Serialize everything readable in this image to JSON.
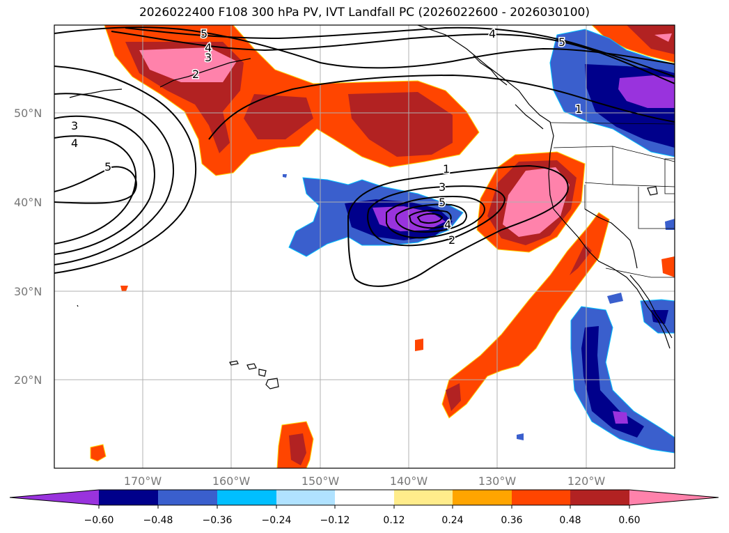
{
  "title": "2026022400 F108 300 hPa PV, IVT Landfall PC (2026022600 - 2026030100)",
  "map": {
    "lat_labels": [
      "50°N",
      "40°N",
      "30°N",
      "20°N"
    ],
    "lon_labels": [
      "170°W",
      "160°W",
      "150°W",
      "140°W",
      "130°W",
      "120°W"
    ],
    "contour_labels": [
      "5",
      "4",
      "3",
      "2",
      "4",
      "5",
      "1",
      "3",
      "4",
      "5",
      "1",
      "3",
      "5",
      "4",
      "2"
    ]
  },
  "colorbar": {
    "colors": [
      "#9933dd",
      "#00008b",
      "#3a5fcd",
      "#00bfff",
      "#b0e2ff",
      "#ffffff",
      "#ffec8b",
      "#ffa500",
      "#ff4500",
      "#b22222",
      "#ff82ab"
    ],
    "tick_labels": [
      "−0.60",
      "−0.48",
      "−0.36",
      "−0.24",
      "−0.12",
      "0.12",
      "0.24",
      "0.36",
      "0.48",
      "0.60"
    ]
  },
  "colors": {
    "positive_fill": "#ff4500",
    "strong_positive": "#b22222",
    "max_positive": "#ff82ab",
    "negative_fill": "#3a5fcd",
    "strong_negative": "#00008b",
    "max_negative": "#9933dd"
  }
}
